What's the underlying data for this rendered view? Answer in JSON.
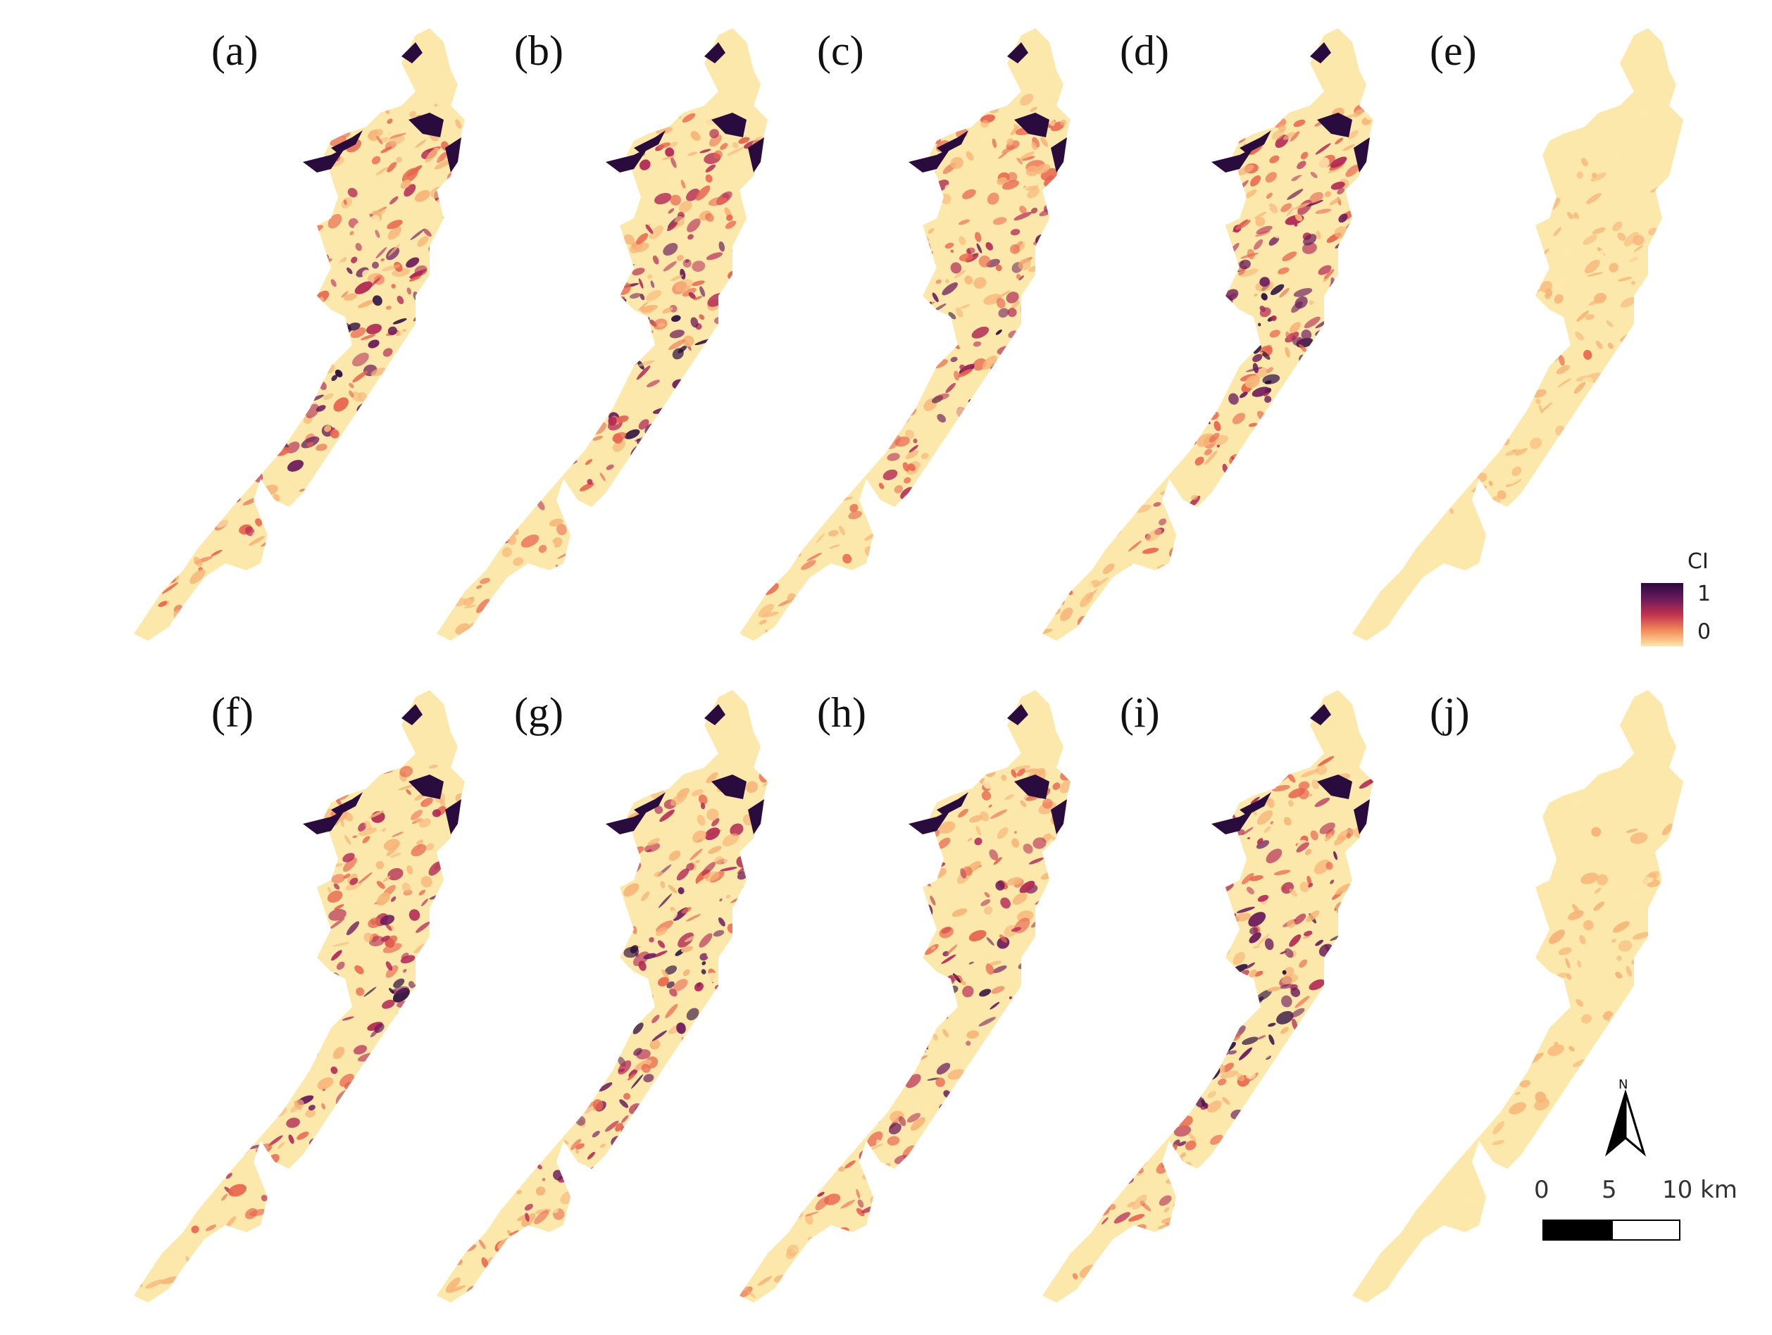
{
  "panels": [
    {
      "label": "(a)",
      "row": 0,
      "col": 0,
      "variant": 1,
      "intensity": 0.62
    },
    {
      "label": "(b)",
      "row": 0,
      "col": 1,
      "variant": 2,
      "intensity": 0.66
    },
    {
      "label": "(c)",
      "row": 0,
      "col": 2,
      "variant": 3,
      "intensity": 0.6
    },
    {
      "label": "(d)",
      "row": 0,
      "col": 3,
      "variant": 4,
      "intensity": 0.68
    },
    {
      "label": "(e)",
      "row": 0,
      "col": 4,
      "variant": 5,
      "intensity": 0.22
    },
    {
      "label": "(f)",
      "row": 1,
      "col": 0,
      "variant": 6,
      "intensity": 0.64
    },
    {
      "label": "(g)",
      "row": 1,
      "col": 1,
      "variant": 7,
      "intensity": 0.7
    },
    {
      "label": "(h)",
      "row": 1,
      "col": 2,
      "variant": 8,
      "intensity": 0.63
    },
    {
      "label": "(i)",
      "row": 1,
      "col": 3,
      "variant": 9,
      "intensity": 0.72
    },
    {
      "label": "(j)",
      "row": 1,
      "col": 4,
      "variant": 10,
      "intensity": 0.2
    }
  ],
  "legend": {
    "title": "CI",
    "max_label": "1",
    "min_label": "0",
    "ramp": [
      "#fde8ac",
      "#f7b478",
      "#e8654f",
      "#b22a55",
      "#6b1a5a",
      "#2a0b3d"
    ]
  },
  "north_arrow": {
    "label": "N"
  },
  "scale_bar": {
    "ticks": [
      "0",
      "5",
      "10 km"
    ]
  },
  "colors": {
    "background": "#fde8ac",
    "low": "#fbd49a",
    "mid": "#e8654f",
    "high": "#6b1a5a",
    "max": "#2a0b3d"
  }
}
